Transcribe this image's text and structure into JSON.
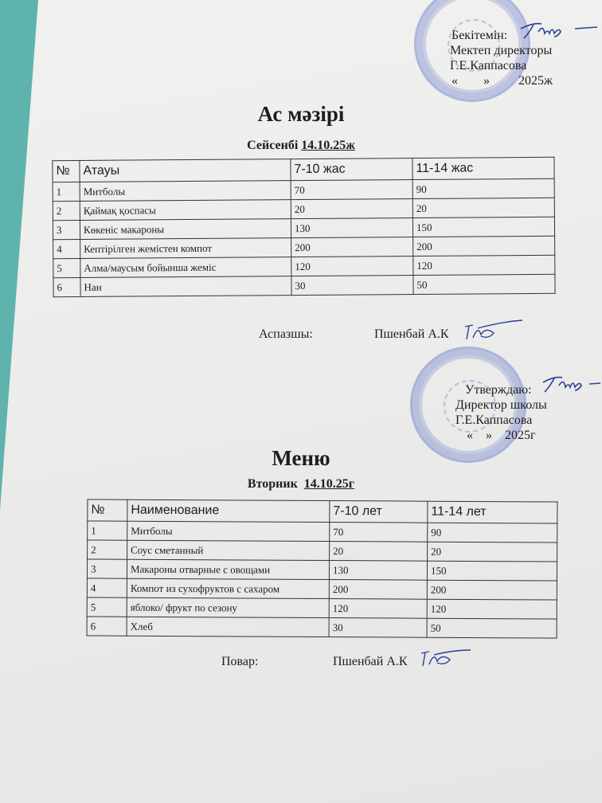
{
  "kz": {
    "approval": {
      "line1": "Бекітемін:",
      "line2": "Мектеп директоры",
      "line3": "Г.Е.Каппасова",
      "line4": "«        »         2025ж"
    },
    "title": "Ас мәзірі",
    "day": "Сейсенбі",
    "date": "14.10.25ж",
    "headers": [
      "№",
      "Атауы",
      "7-10 жас",
      "11-14 жас"
    ],
    "rows": [
      [
        "1",
        "Митболы",
        "70",
        "90"
      ],
      [
        "2",
        "Қаймақ қоспасы",
        "20",
        "20"
      ],
      [
        "3",
        "Көкеніс макароны",
        "130",
        "150"
      ],
      [
        "4",
        "Кептірілген жемістен  компот",
        "200",
        "200"
      ],
      [
        "5",
        "Алма/маусым бойынша жеміс",
        "120",
        "120"
      ],
      [
        "6",
        "Нан",
        "30",
        "50"
      ]
    ],
    "cook_label": "Аспазшы:",
    "cook_name": "Пшенбай А.К"
  },
  "ru": {
    "approval": {
      "line1": "Утверждаю:",
      "line2": "Директор школы",
      "line3": "Г.Е.Каппасова",
      "line4": "«    »    2025г"
    },
    "title": "Меню",
    "day": "Вторник",
    "date": "14.10.25г",
    "headers": [
      "№",
      "Наименование",
      "7-10 лет",
      "11-14 лет"
    ],
    "rows": [
      [
        "1",
        "Митболы",
        "70",
        "90"
      ],
      [
        "2",
        "Соус сметанный",
        "20",
        "20"
      ],
      [
        "3",
        "Макароны отварные с овощами",
        "130",
        "150"
      ],
      [
        "4",
        "Компот из сухофруктов с сахаром",
        "200",
        "200"
      ],
      [
        "5",
        "яблоко/ фрукт по сезону",
        "120",
        "120"
      ],
      [
        "6",
        "Хлеб",
        "30",
        "50"
      ]
    ],
    "cook_label": "Повар:",
    "cook_name": "Пшенбай А.К"
  }
}
